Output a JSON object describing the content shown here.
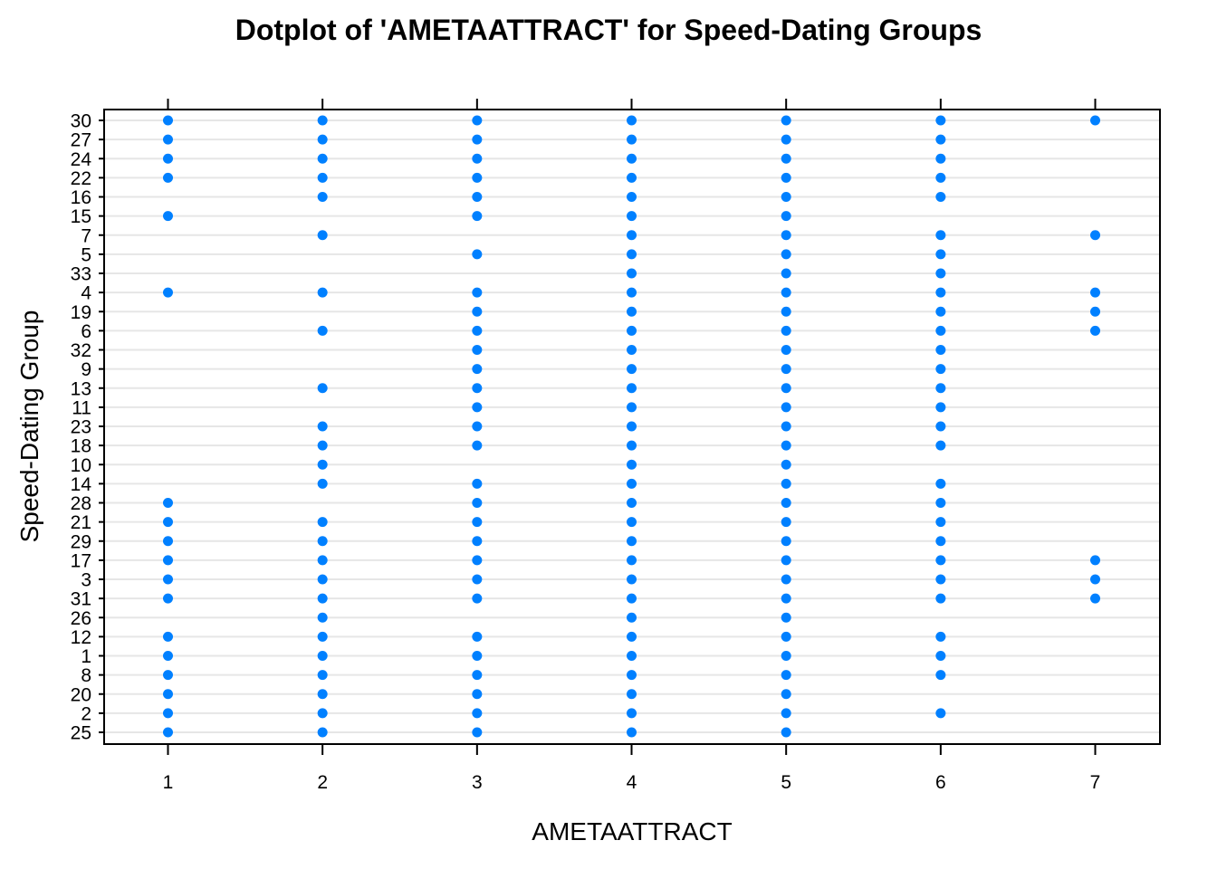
{
  "chart_data": {
    "type": "scatter",
    "title": "Dotplot of 'AMETAATTRACT' for Speed-Dating Groups",
    "xlabel": "AMETAATTRACT",
    "ylabel": "Speed-Dating Group",
    "xlim": [
      0.58,
      7.42
    ],
    "x_ticks": [
      "1",
      "2",
      "3",
      "4",
      "5",
      "6",
      "7"
    ],
    "grid": "horizontal",
    "point_color": "#0080ff",
    "grid_color": "#e6e6e6",
    "categories": [
      "25",
      "2",
      "20",
      "8",
      "1",
      "12",
      "26",
      "31",
      "3",
      "17",
      "29",
      "21",
      "28",
      "14",
      "10",
      "18",
      "23",
      "11",
      "13",
      "9",
      "32",
      "6",
      "19",
      "4",
      "33",
      "5",
      "7",
      "15",
      "16",
      "22",
      "24",
      "27",
      "30"
    ],
    "values_by_group": {
      "30": [
        1,
        2,
        3,
        4,
        5,
        6,
        7
      ],
      "27": [
        1,
        2,
        3,
        4,
        5,
        6
      ],
      "24": [
        1,
        2,
        3,
        4,
        5,
        6
      ],
      "22": [
        1,
        2,
        3,
        4,
        5,
        6
      ],
      "16": [
        2,
        3,
        4,
        5,
        6
      ],
      "15": [
        1,
        3,
        4,
        5
      ],
      "7": [
        2,
        4,
        5,
        6,
        7
      ],
      "5": [
        3,
        4,
        5,
        6
      ],
      "33": [
        4,
        5,
        6
      ],
      "4": [
        1,
        2,
        3,
        4,
        5,
        6,
        7
      ],
      "19": [
        3,
        4,
        5,
        6,
        7
      ],
      "6": [
        2,
        3,
        4,
        5,
        6,
        7
      ],
      "32": [
        3,
        4,
        5,
        6
      ],
      "9": [
        3,
        4,
        5,
        6
      ],
      "13": [
        2,
        3,
        4,
        5,
        6
      ],
      "11": [
        3,
        4,
        5,
        6
      ],
      "23": [
        2,
        3,
        4,
        5,
        6
      ],
      "18": [
        2,
        3,
        4,
        5,
        6
      ],
      "10": [
        2,
        4,
        5
      ],
      "14": [
        2,
        3,
        4,
        5,
        6
      ],
      "28": [
        1,
        3,
        4,
        5,
        6
      ],
      "21": [
        1,
        2,
        3,
        4,
        5,
        6
      ],
      "29": [
        1,
        2,
        3,
        4,
        5,
        6
      ],
      "17": [
        1,
        2,
        3,
        4,
        5,
        6,
        7
      ],
      "3": [
        1,
        2,
        3,
        4,
        5,
        6,
        7
      ],
      "31": [
        1,
        2,
        3,
        4,
        5,
        6,
        7
      ],
      "26": [
        2,
        4,
        5
      ],
      "12": [
        1,
        2,
        3,
        4,
        5,
        6
      ],
      "1": [
        1,
        2,
        3,
        4,
        5,
        6
      ],
      "8": [
        1,
        2,
        3,
        4,
        5,
        6
      ],
      "20": [
        1,
        2,
        3,
        4,
        5
      ],
      "2": [
        1,
        2,
        3,
        4,
        5,
        6
      ],
      "25": [
        1,
        2,
        3,
        4,
        5
      ]
    }
  }
}
